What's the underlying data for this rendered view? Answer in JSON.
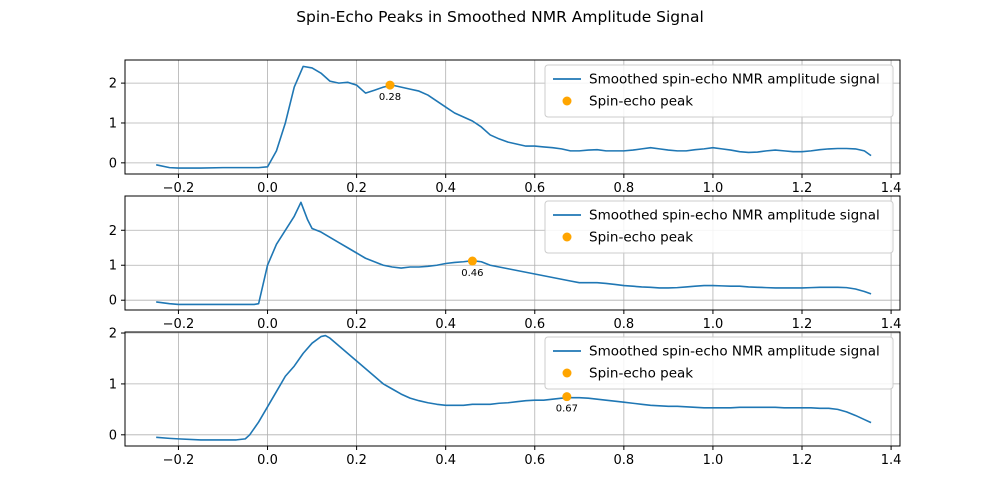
{
  "figure": {
    "title": "Spin-Echo Peaks in Smoothed NMR Amplitude Signal"
  },
  "colors": {
    "line": "#1f77b4",
    "peak": "#ffa500",
    "grid": "#b0b0b0",
    "axes": "#000000",
    "legend_border": "#cccccc",
    "background": "#ffffff"
  },
  "chart_data": [
    {
      "type": "line",
      "title": "",
      "xlabel": "",
      "ylabel": "",
      "xlim": [
        -0.32,
        1.42
      ],
      "ylim": [
        -0.28,
        2.58
      ],
      "x_ticks": [
        -0.2,
        0.0,
        0.2,
        0.4,
        0.6,
        0.8,
        1.0,
        1.2,
        1.4
      ],
      "x_tick_labels": [
        "−0.2",
        "0.0",
        "0.2",
        "0.4",
        "0.6",
        "0.8",
        "1.0",
        "1.2",
        "1.4"
      ],
      "y_ticks": [
        0,
        1,
        2
      ],
      "y_tick_labels": [
        "0",
        "1",
        "2"
      ],
      "grid": true,
      "legend_position": "upper right",
      "series": [
        {
          "name": "Smoothed spin-echo NMR amplitude signal",
          "x": [
            -0.25,
            -0.22,
            -0.2,
            -0.15,
            -0.1,
            -0.05,
            -0.02,
            0.0,
            0.02,
            0.04,
            0.06,
            0.08,
            0.1,
            0.12,
            0.14,
            0.16,
            0.18,
            0.2,
            0.22,
            0.24,
            0.26,
            0.28,
            0.3,
            0.32,
            0.34,
            0.36,
            0.38,
            0.4,
            0.42,
            0.44,
            0.46,
            0.48,
            0.5,
            0.52,
            0.54,
            0.56,
            0.58,
            0.6,
            0.62,
            0.64,
            0.66,
            0.68,
            0.7,
            0.72,
            0.74,
            0.76,
            0.78,
            0.8,
            0.82,
            0.84,
            0.86,
            0.88,
            0.9,
            0.92,
            0.94,
            0.96,
            0.98,
            1.0,
            1.02,
            1.04,
            1.06,
            1.08,
            1.1,
            1.12,
            1.14,
            1.16,
            1.18,
            1.2,
            1.22,
            1.24,
            1.26,
            1.28,
            1.3,
            1.32,
            1.34,
            1.355
          ],
          "y": [
            -0.05,
            -0.12,
            -0.13,
            -0.13,
            -0.12,
            -0.12,
            -0.12,
            -0.1,
            0.3,
            1.0,
            1.9,
            2.42,
            2.38,
            2.25,
            2.05,
            2.0,
            2.02,
            1.95,
            1.75,
            1.82,
            1.9,
            1.95,
            1.9,
            1.85,
            1.8,
            1.7,
            1.55,
            1.4,
            1.25,
            1.15,
            1.05,
            0.9,
            0.7,
            0.6,
            0.52,
            0.47,
            0.42,
            0.42,
            0.4,
            0.38,
            0.35,
            0.3,
            0.3,
            0.32,
            0.33,
            0.3,
            0.3,
            0.3,
            0.32,
            0.35,
            0.38,
            0.35,
            0.32,
            0.3,
            0.3,
            0.33,
            0.35,
            0.38,
            0.35,
            0.32,
            0.28,
            0.26,
            0.27,
            0.3,
            0.32,
            0.3,
            0.28,
            0.28,
            0.3,
            0.33,
            0.35,
            0.36,
            0.36,
            0.35,
            0.3,
            0.18
          ]
        }
      ],
      "peaks": {
        "name": "Spin-echo peak",
        "x": [
          0.275
        ],
        "y": [
          1.95
        ],
        "labels": [
          "0.28"
        ]
      }
    },
    {
      "type": "line",
      "title": "",
      "xlabel": "",
      "ylabel": "",
      "xlim": [
        -0.32,
        1.42
      ],
      "ylim": [
        -0.28,
        2.98
      ],
      "x_ticks": [
        -0.2,
        0.0,
        0.2,
        0.4,
        0.6,
        0.8,
        1.0,
        1.2,
        1.4
      ],
      "x_tick_labels": [
        "−0.2",
        "0.0",
        "0.2",
        "0.4",
        "0.6",
        "0.8",
        "1.0",
        "1.2",
        "1.4"
      ],
      "y_ticks": [
        0,
        1,
        2
      ],
      "y_tick_labels": [
        "0",
        "1",
        "2"
      ],
      "grid": true,
      "legend_position": "upper right",
      "series": [
        {
          "name": "Smoothed spin-echo NMR amplitude signal",
          "x": [
            -0.25,
            -0.22,
            -0.2,
            -0.15,
            -0.1,
            -0.05,
            -0.03,
            -0.02,
            0.0,
            0.02,
            0.04,
            0.06,
            0.075,
            0.09,
            0.1,
            0.12,
            0.14,
            0.16,
            0.18,
            0.2,
            0.22,
            0.24,
            0.26,
            0.28,
            0.3,
            0.32,
            0.34,
            0.36,
            0.38,
            0.4,
            0.42,
            0.44,
            0.46,
            0.48,
            0.5,
            0.52,
            0.54,
            0.56,
            0.58,
            0.6,
            0.62,
            0.64,
            0.66,
            0.68,
            0.7,
            0.72,
            0.74,
            0.76,
            0.78,
            0.8,
            0.82,
            0.84,
            0.86,
            0.88,
            0.9,
            0.92,
            0.94,
            0.96,
            0.98,
            1.0,
            1.02,
            1.04,
            1.06,
            1.08,
            1.1,
            1.12,
            1.14,
            1.16,
            1.18,
            1.2,
            1.22,
            1.24,
            1.26,
            1.28,
            1.3,
            1.32,
            1.34,
            1.355
          ],
          "y": [
            -0.05,
            -0.1,
            -0.12,
            -0.12,
            -0.12,
            -0.12,
            -0.12,
            -0.1,
            1.0,
            1.6,
            2.0,
            2.4,
            2.8,
            2.3,
            2.05,
            1.95,
            1.8,
            1.65,
            1.5,
            1.35,
            1.2,
            1.1,
            1.0,
            0.95,
            0.92,
            0.95,
            0.95,
            0.97,
            1.0,
            1.05,
            1.08,
            1.1,
            1.13,
            1.1,
            1.0,
            0.95,
            0.9,
            0.85,
            0.8,
            0.75,
            0.7,
            0.65,
            0.6,
            0.55,
            0.5,
            0.5,
            0.5,
            0.48,
            0.45,
            0.42,
            0.4,
            0.38,
            0.37,
            0.35,
            0.35,
            0.36,
            0.38,
            0.4,
            0.42,
            0.42,
            0.41,
            0.4,
            0.4,
            0.38,
            0.37,
            0.36,
            0.35,
            0.35,
            0.35,
            0.35,
            0.36,
            0.37,
            0.37,
            0.37,
            0.36,
            0.32,
            0.25,
            0.18
          ]
        }
      ],
      "peaks": {
        "name": "Spin-echo peak",
        "x": [
          0.46
        ],
        "y": [
          1.12
        ],
        "labels": [
          "0.46"
        ]
      }
    },
    {
      "type": "line",
      "title": "",
      "xlabel": "",
      "ylabel": "",
      "xlim": [
        -0.32,
        1.42
      ],
      "ylim": [
        -0.22,
        2.02
      ],
      "x_ticks": [
        -0.2,
        0.0,
        0.2,
        0.4,
        0.6,
        0.8,
        1.0,
        1.2,
        1.4
      ],
      "x_tick_labels": [
        "−0.2",
        "0.0",
        "0.2",
        "0.4",
        "0.6",
        "0.8",
        "1.0",
        "1.2",
        "1.4"
      ],
      "y_ticks": [
        0,
        1,
        2
      ],
      "y_tick_labels": [
        "0",
        "1",
        "2"
      ],
      "grid": true,
      "legend_position": "upper right",
      "series": [
        {
          "name": "Smoothed spin-echo NMR amplitude signal",
          "x": [
            -0.25,
            -0.22,
            -0.2,
            -0.15,
            -0.1,
            -0.07,
            -0.05,
            -0.04,
            -0.02,
            0.0,
            0.02,
            0.04,
            0.06,
            0.08,
            0.1,
            0.12,
            0.13,
            0.14,
            0.16,
            0.18,
            0.2,
            0.22,
            0.24,
            0.26,
            0.28,
            0.3,
            0.32,
            0.34,
            0.36,
            0.38,
            0.4,
            0.42,
            0.44,
            0.46,
            0.48,
            0.5,
            0.52,
            0.54,
            0.56,
            0.58,
            0.6,
            0.62,
            0.64,
            0.66,
            0.68,
            0.7,
            0.72,
            0.74,
            0.76,
            0.78,
            0.8,
            0.82,
            0.84,
            0.86,
            0.88,
            0.9,
            0.92,
            0.94,
            0.96,
            0.98,
            1.0,
            1.02,
            1.04,
            1.06,
            1.08,
            1.1,
            1.12,
            1.14,
            1.16,
            1.18,
            1.2,
            1.22,
            1.24,
            1.26,
            1.28,
            1.3,
            1.32,
            1.34,
            1.355
          ],
          "y": [
            -0.05,
            -0.07,
            -0.08,
            -0.1,
            -0.1,
            -0.1,
            -0.08,
            0.0,
            0.25,
            0.55,
            0.85,
            1.15,
            1.35,
            1.6,
            1.8,
            1.93,
            1.95,
            1.9,
            1.75,
            1.6,
            1.45,
            1.3,
            1.15,
            1.0,
            0.9,
            0.8,
            0.72,
            0.67,
            0.63,
            0.6,
            0.58,
            0.58,
            0.58,
            0.6,
            0.6,
            0.6,
            0.62,
            0.63,
            0.65,
            0.67,
            0.68,
            0.68,
            0.7,
            0.72,
            0.73,
            0.73,
            0.72,
            0.7,
            0.68,
            0.66,
            0.64,
            0.62,
            0.6,
            0.58,
            0.57,
            0.56,
            0.56,
            0.55,
            0.54,
            0.53,
            0.53,
            0.53,
            0.53,
            0.54,
            0.54,
            0.54,
            0.54,
            0.54,
            0.53,
            0.53,
            0.53,
            0.53,
            0.52,
            0.52,
            0.5,
            0.45,
            0.38,
            0.3,
            0.24
          ]
        }
      ],
      "peaks": {
        "name": "Spin-echo peak",
        "x": [
          0.672
        ],
        "y": [
          0.75
        ],
        "labels": [
          "0.67"
        ]
      }
    }
  ]
}
